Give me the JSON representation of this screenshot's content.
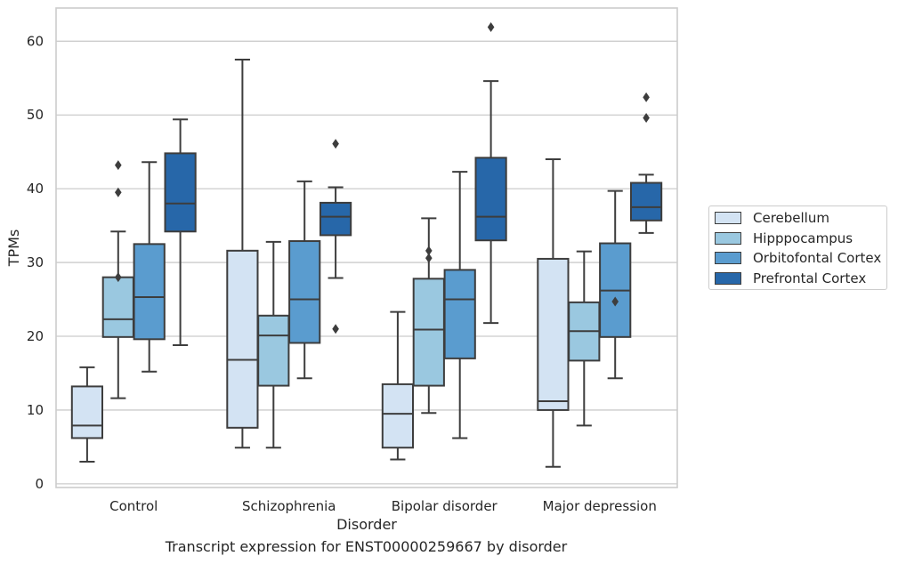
{
  "chart_data": {
    "type": "box",
    "title": "",
    "caption": "Transcript expression for ENST00000259667 by disorder",
    "xlabel": "Disorder",
    "ylabel": "TPMs",
    "ylim": [
      -0.5,
      64.5
    ],
    "yticks": [
      0,
      10,
      20,
      30,
      40,
      50,
      60
    ],
    "grid": "horizontal",
    "legend_position": "right",
    "categories": [
      "Control",
      "Schizophrenia",
      "Bipolar disorder",
      "Major depression"
    ],
    "series": [
      {
        "name": "Cerebellum",
        "color": "#d3e3f3",
        "boxes": [
          {
            "min": 3.0,
            "q1": 6.2,
            "median": 7.9,
            "q3": 13.2,
            "max": 15.8,
            "outliers": []
          },
          {
            "min": 4.9,
            "q1": 7.6,
            "median": 16.8,
            "q3": 31.6,
            "max": 57.5,
            "outliers": []
          },
          {
            "min": 3.3,
            "q1": 4.9,
            "median": 9.5,
            "q3": 13.5,
            "max": 23.3,
            "outliers": []
          },
          {
            "min": 2.3,
            "q1": 10.0,
            "median": 11.2,
            "q3": 30.5,
            "max": 44.0,
            "outliers": []
          }
        ]
      },
      {
        "name": "Hipppocampus",
        "color": "#9ac8e0",
        "boxes": [
          {
            "min": 11.6,
            "q1": 19.9,
            "median": 22.3,
            "q3": 28.0,
            "max": 34.2,
            "outliers": [
              28.0,
              39.5,
              43.2
            ]
          },
          {
            "min": 4.9,
            "q1": 13.3,
            "median": 20.1,
            "q3": 22.8,
            "max": 32.8,
            "outliers": []
          },
          {
            "min": 9.6,
            "q1": 13.3,
            "median": 20.9,
            "q3": 27.8,
            "max": 36.0,
            "outliers": [
              30.6,
              31.6
            ]
          },
          {
            "min": 7.9,
            "q1": 16.7,
            "median": 20.7,
            "q3": 24.6,
            "max": 31.5,
            "outliers": []
          }
        ]
      },
      {
        "name": "Orbitofontal Cortex",
        "color": "#5a9ccf",
        "boxes": [
          {
            "min": 15.2,
            "q1": 19.6,
            "median": 25.3,
            "q3": 32.5,
            "max": 43.6,
            "outliers": []
          },
          {
            "min": 14.3,
            "q1": 19.1,
            "median": 25.0,
            "q3": 32.9,
            "max": 41.0,
            "outliers": []
          },
          {
            "min": 6.2,
            "q1": 17.0,
            "median": 25.0,
            "q3": 29.0,
            "max": 42.3,
            "outliers": []
          },
          {
            "min": 14.3,
            "q1": 19.9,
            "median": 26.2,
            "q3": 32.6,
            "max": 39.7,
            "outliers": [
              24.7
            ]
          }
        ]
      },
      {
        "name": "Prefrontal Cortex",
        "color": "#2767a9",
        "boxes": [
          {
            "min": 18.8,
            "q1": 34.2,
            "median": 38.0,
            "q3": 44.8,
            "max": 49.4,
            "outliers": []
          },
          {
            "min": 27.9,
            "q1": 33.7,
            "median": 36.2,
            "q3": 38.1,
            "max": 40.2,
            "outliers": [
              21.0,
              46.1
            ]
          },
          {
            "min": 21.8,
            "q1": 33.0,
            "median": 36.2,
            "q3": 44.2,
            "max": 54.6,
            "outliers": [
              61.9
            ]
          },
          {
            "min": 34.0,
            "q1": 35.7,
            "median": 37.5,
            "q3": 40.8,
            "max": 41.9,
            "outliers": [
              49.6,
              52.4
            ]
          }
        ]
      }
    ]
  }
}
